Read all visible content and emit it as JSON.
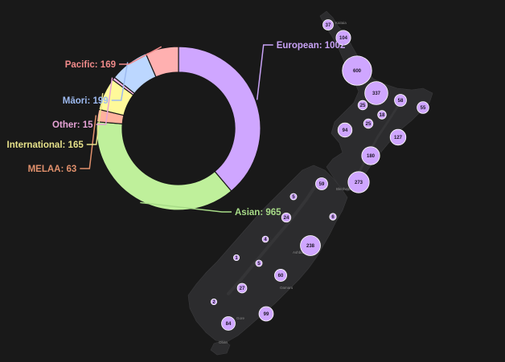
{
  "chart_data": {
    "type": "pie",
    "style": "donut",
    "title": "",
    "slices": [
      {
        "label": "European",
        "value": 1002,
        "color": "#cfa6ff",
        "label_color": "#c8a2f5"
      },
      {
        "label": "Asian",
        "value": 965,
        "color": "#bff09b",
        "label_color": "#a8dc88"
      },
      {
        "label": "MELAA",
        "value": 63,
        "color": "#ffb29e",
        "label_color": "#e0906c"
      },
      {
        "label": "International",
        "value": 165,
        "color": "#fff99a",
        "label_color": "#e6e18a"
      },
      {
        "label": "Other",
        "value": 15,
        "color": "#f8b6e6",
        "label_color": "#e6a2d6"
      },
      {
        "label": "Māori",
        "value": 199,
        "color": "#bcd7ff",
        "label_color": "#9dbaf0"
      },
      {
        "label": "Pacific",
        "value": 169,
        "color": "#ffb0b0",
        "label_color": "#f08a8a"
      }
    ]
  },
  "map": {
    "bubble_color": "#cfa6ff",
    "bubbles": [
      {
        "value": 37
      },
      {
        "value": 104
      },
      {
        "value": 600
      },
      {
        "value": 337
      },
      {
        "value": 58
      },
      {
        "value": 55
      },
      {
        "value": 25
      },
      {
        "value": 18
      },
      {
        "value": 25
      },
      {
        "value": 94
      },
      {
        "value": 127
      },
      {
        "value": 180
      },
      {
        "value": 59
      },
      {
        "value": 273
      },
      {
        "value": 5
      },
      {
        "value": 24
      },
      {
        "value": 6
      },
      {
        "value": 4
      },
      {
        "value": 238
      },
      {
        "value": 1
      },
      {
        "value": 5
      },
      {
        "value": 60
      },
      {
        "value": 27
      },
      {
        "value": 2
      },
      {
        "value": 99
      },
      {
        "value": 84
      }
    ],
    "place_labels": [
      "Kaitaia",
      "Blenheim",
      "Ashburton",
      "Oamaru",
      "Gore",
      "Oban"
    ]
  }
}
